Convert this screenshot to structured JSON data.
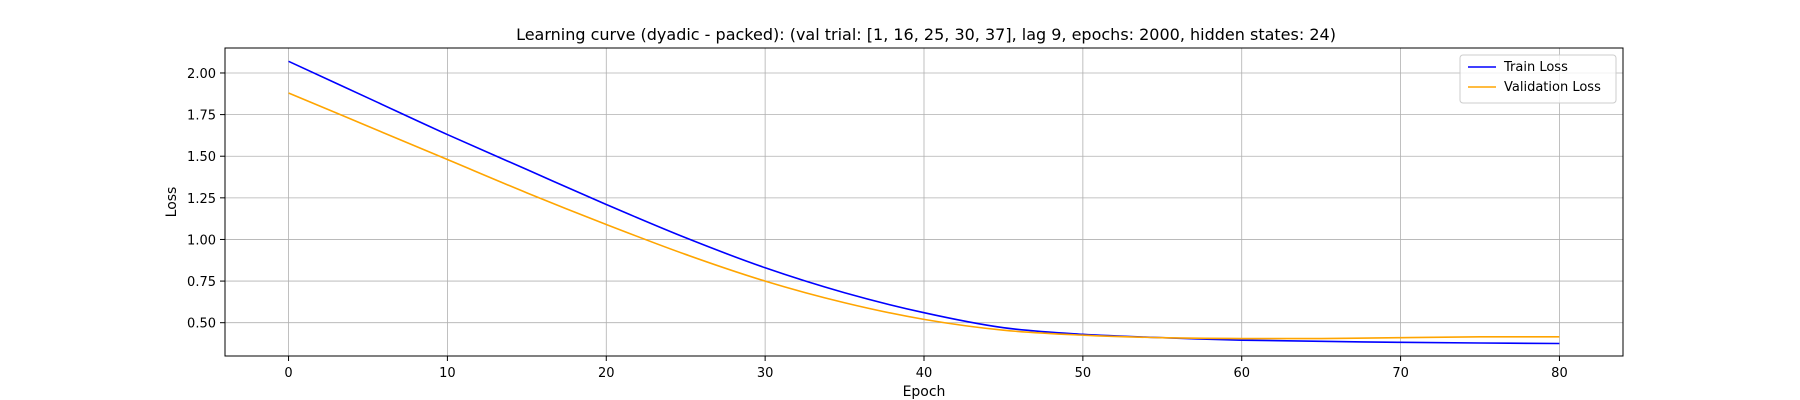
{
  "chart_data": {
    "type": "line",
    "title": "Learning curve (dyadic - packed): (val trial: [1, 16, 25, 30, 37], lag 9, epochs: 2000, hidden states: 24)",
    "xlabel": "Epoch",
    "ylabel": "Loss",
    "xlim": [
      -4,
      84
    ],
    "ylim": [
      0.3,
      2.15
    ],
    "xticks": [
      0,
      10,
      20,
      30,
      40,
      50,
      60,
      70,
      80
    ],
    "yticks": [
      0.5,
      0.75,
      1.0,
      1.25,
      1.5,
      1.75,
      2.0
    ],
    "ytick_labels": [
      "0.50",
      "0.75",
      "1.00",
      "1.25",
      "1.50",
      "1.75",
      "2.00"
    ],
    "grid": true,
    "legend_position": "top-right",
    "x": [
      0,
      5,
      10,
      15,
      20,
      25,
      30,
      35,
      40,
      45,
      50,
      55,
      60,
      65,
      70,
      75,
      80
    ],
    "series": [
      {
        "name": "Train Loss",
        "color": "#0000ff",
        "values": [
          2.07,
          1.85,
          1.63,
          1.42,
          1.21,
          1.01,
          0.83,
          0.68,
          0.56,
          0.47,
          0.43,
          0.41,
          0.395,
          0.388,
          0.382,
          0.378,
          0.375
        ]
      },
      {
        "name": "Validation Loss",
        "color": "#ffa500",
        "values": [
          1.88,
          1.68,
          1.48,
          1.28,
          1.09,
          0.91,
          0.75,
          0.62,
          0.52,
          0.455,
          0.425,
          0.41,
          0.405,
          0.405,
          0.41,
          0.415,
          0.415
        ]
      }
    ]
  }
}
